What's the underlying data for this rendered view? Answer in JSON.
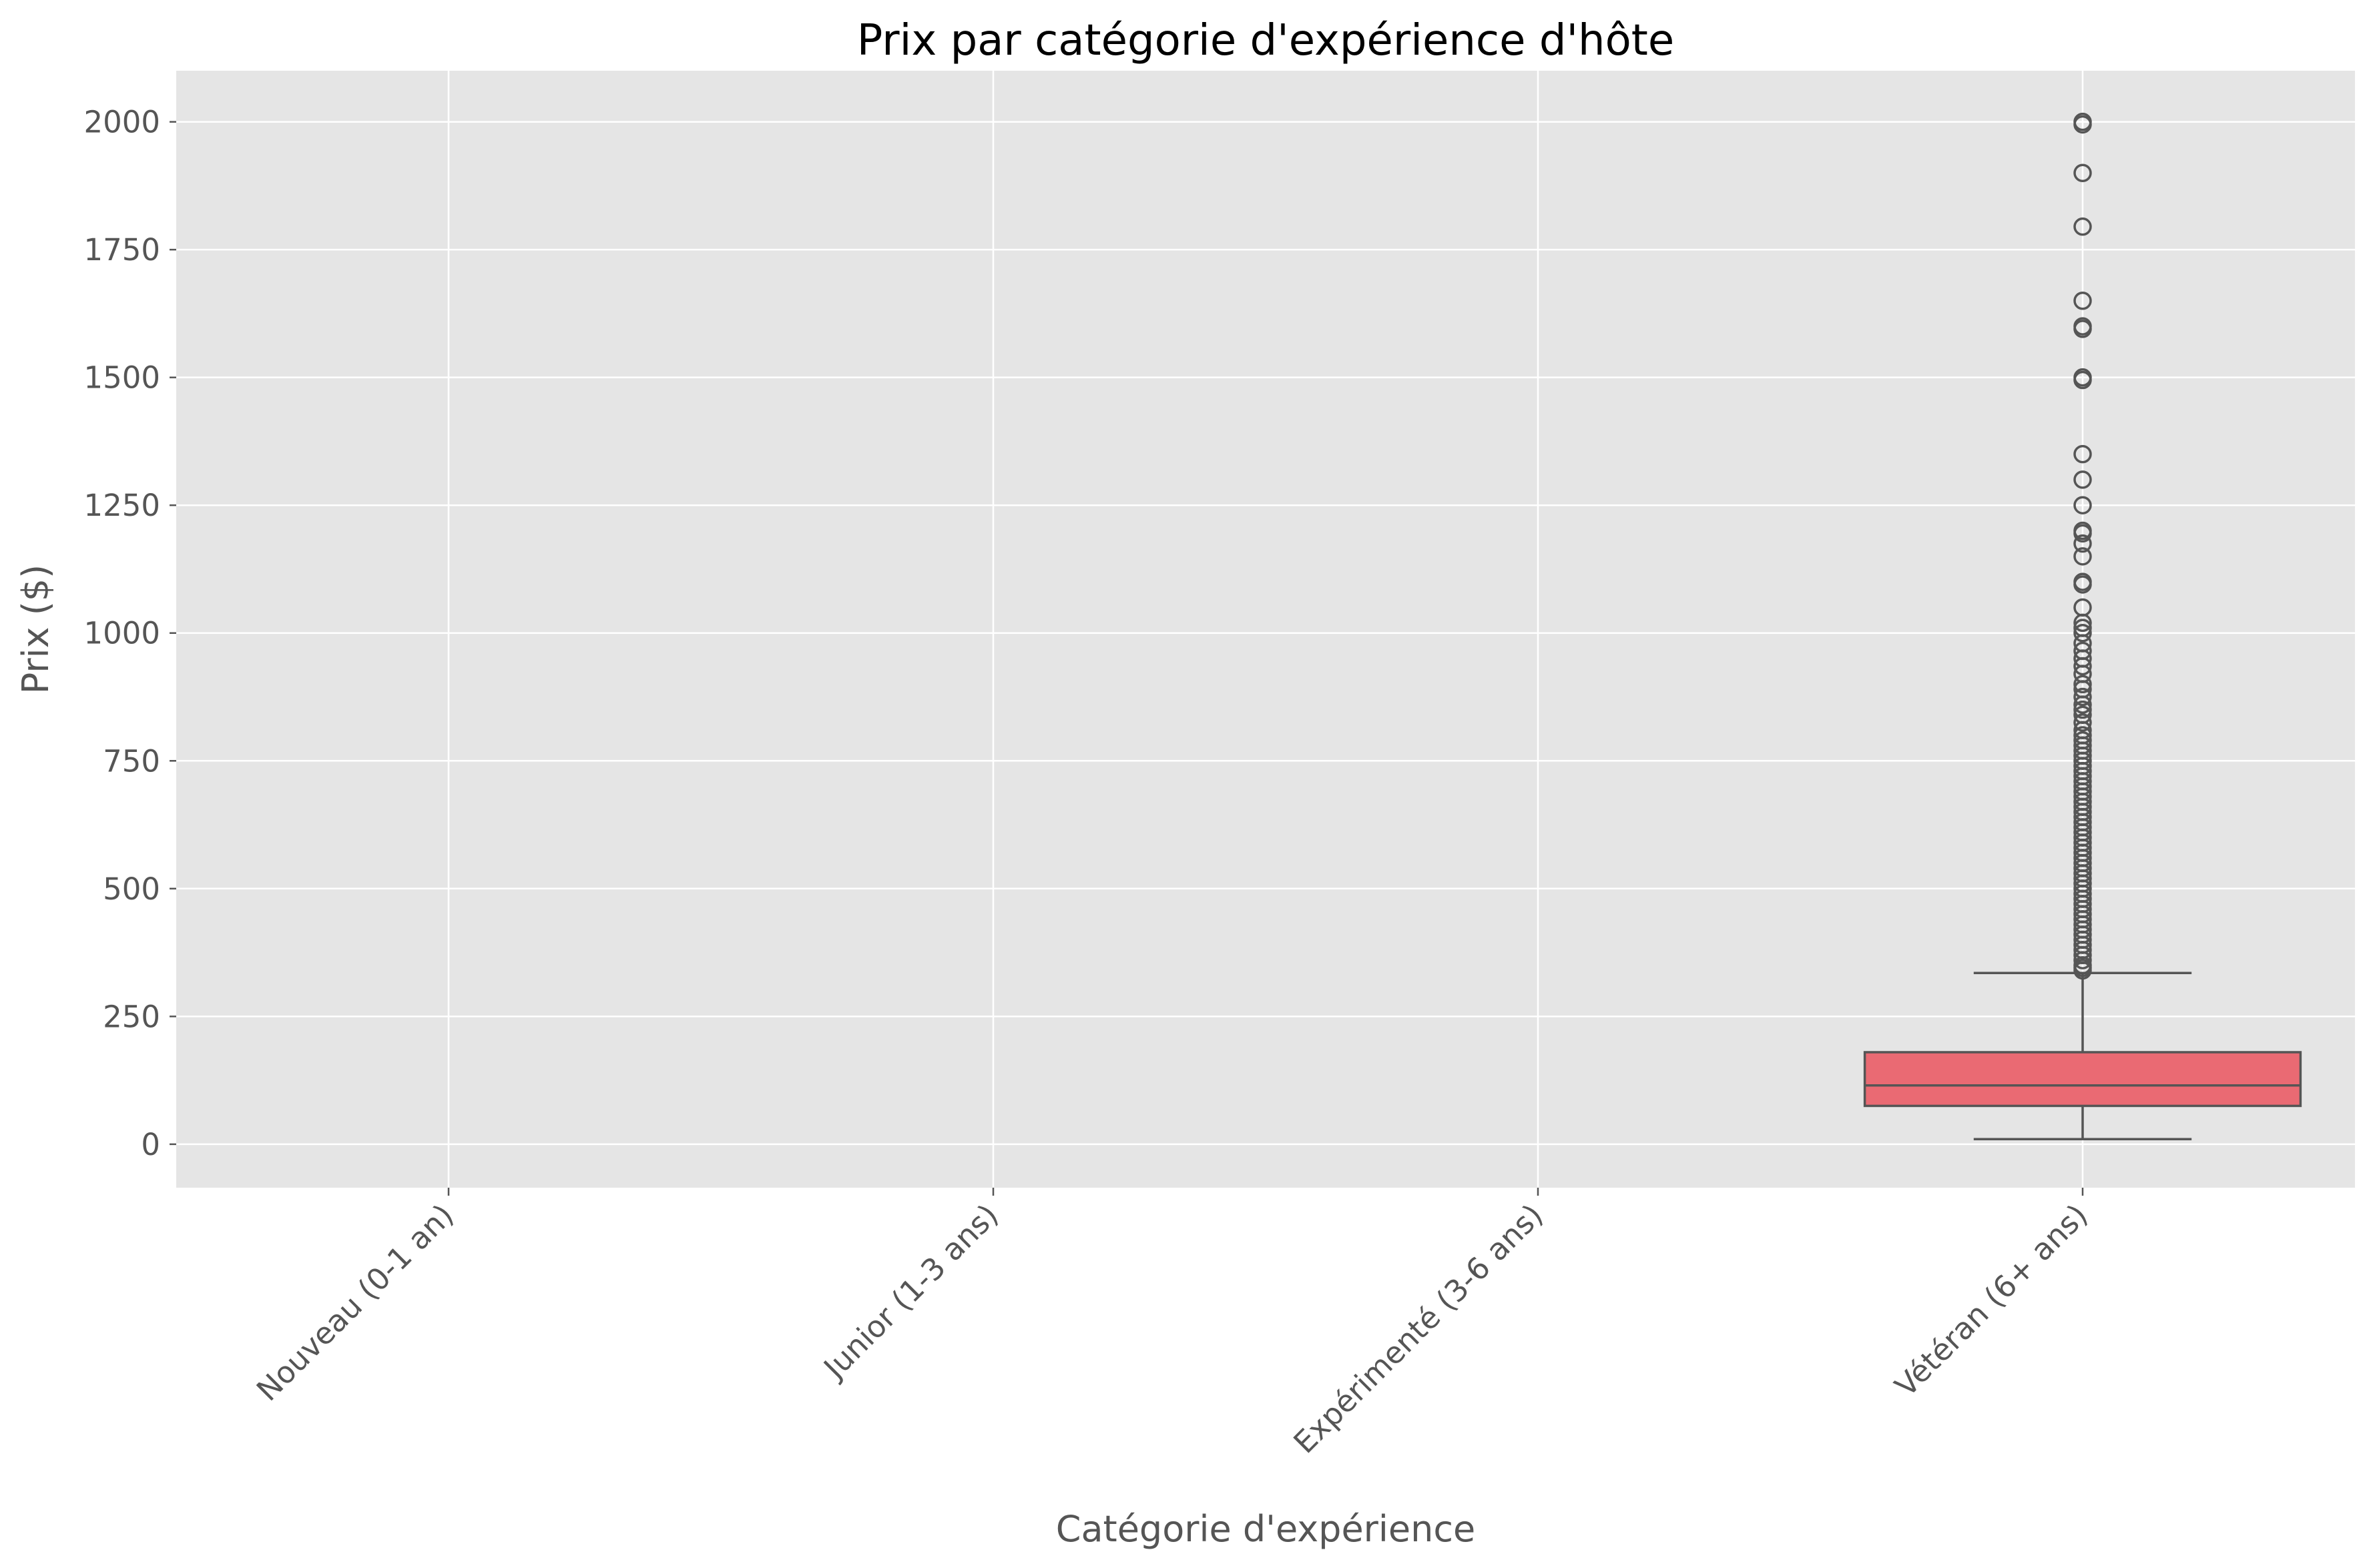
{
  "chart_data": {
    "type": "box",
    "title": "Prix par catégorie d'expérience d'hôte",
    "xlabel": "Catégorie d'expérience",
    "ylabel": "Prix ($)",
    "ylim": [
      -85,
      2100
    ],
    "yticks": [
      0,
      250,
      500,
      750,
      1000,
      1250,
      1500,
      1750,
      2000
    ],
    "grid": true,
    "categories": [
      "Nouveau (0-1 an)",
      "Junior (1-3 ans)",
      "Expérimenté (3-6 ans)",
      "Vétéran (6+ ans)"
    ],
    "boxes": [
      {
        "category": "Vétéran (6+ ans)",
        "whisker_low": 10,
        "q1": 75,
        "median": 115,
        "q3": 180,
        "whisker_high": 335,
        "outliers": [
          2000,
          1995,
          1900,
          1795,
          1650,
          1600,
          1595,
          1500,
          1495,
          1350,
          1300,
          1250,
          1200,
          1195,
          1175,
          1150,
          1100,
          1095,
          1050,
          1020,
          1010,
          1000,
          980,
          965,
          950,
          935,
          920,
          900,
          890,
          875,
          860,
          850,
          840,
          825,
          810,
          800,
          790,
          780,
          770,
          760,
          750,
          740,
          730,
          720,
          710,
          700,
          690,
          680,
          670,
          660,
          650,
          640,
          630,
          620,
          610,
          600,
          590,
          580,
          570,
          560,
          550,
          540,
          530,
          520,
          510,
          500,
          490,
          480,
          470,
          460,
          450,
          440,
          430,
          420,
          410,
          400,
          390,
          380,
          370,
          360,
          350,
          345,
          340
        ]
      }
    ]
  },
  "colors": {
    "plot_background": "#e5e5e5",
    "grid": "#ffffff",
    "box_fill": "#ea6a73",
    "box_edge": "#555555"
  }
}
